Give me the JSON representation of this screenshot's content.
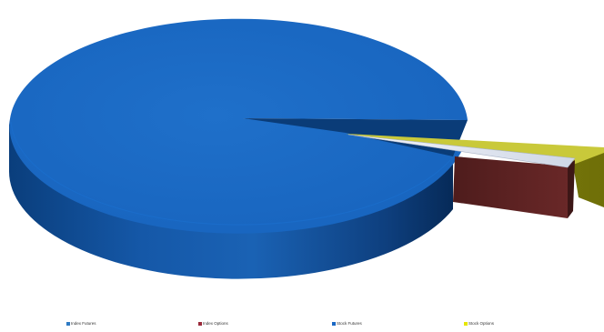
{
  "chart_data": {
    "type": "pie",
    "style": "3d-exploded",
    "title": "",
    "series": [
      {
        "name": "Index Futures",
        "value": 0.1,
        "color": "#2e7bc4"
      },
      {
        "name": "Index Options",
        "value": 2.2,
        "color": "#6b2a2a"
      },
      {
        "name": "Stock Futures",
        "value": 96.2,
        "color": "#1a68c4"
      },
      {
        "name": "Stock Options",
        "value": 1.5,
        "color": "#8f8f12"
      }
    ],
    "legend": {
      "position": "bottom",
      "entries": [
        "Index Futures",
        "Index Options",
        "Stock Futures",
        "Stock Options"
      ]
    }
  }
}
